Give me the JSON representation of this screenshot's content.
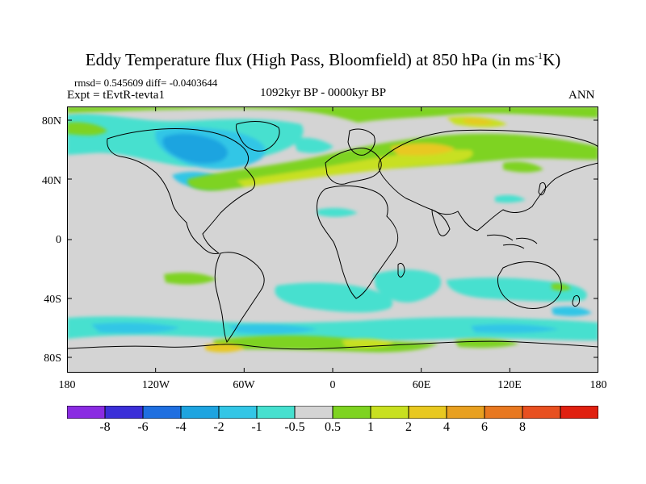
{
  "title": {
    "main": "Eddy Temperature flux (High Pass, Bloomfield) at 850 hPa (in ms",
    "sup": "-1",
    "unit_end": "K)"
  },
  "header": {
    "stats": "rmsd= 0.545609 diff= -0.0403644",
    "expt": "Expt = tEvtR-tevta1",
    "period": "1092kyr BP - 0000kyr BP",
    "season": "ANN"
  },
  "map": {
    "projection": "cylindrical-equidistant",
    "background_color": "#d4d4d4",
    "lat_ticks": [
      "80N",
      "40N",
      "0",
      "40S",
      "80S"
    ],
    "lon_ticks": [
      "180",
      "120W",
      "60W",
      "0",
      "60E",
      "120E",
      "180"
    ]
  },
  "colorbar": {
    "colors": [
      "#8a2be2",
      "#3b2fd8",
      "#1f6fe0",
      "#1ea4e0",
      "#33c6e6",
      "#46e0cf",
      "#d4d4d4",
      "#7ed321",
      "#c8e020",
      "#e8c820",
      "#e8a020",
      "#e87820",
      "#e85020",
      "#e02010"
    ],
    "labels": [
      "-8",
      "-6",
      "-4",
      "-2",
      "-1",
      "-0.5",
      "0.5",
      "1",
      "2",
      "4",
      "6",
      "8"
    ]
  }
}
